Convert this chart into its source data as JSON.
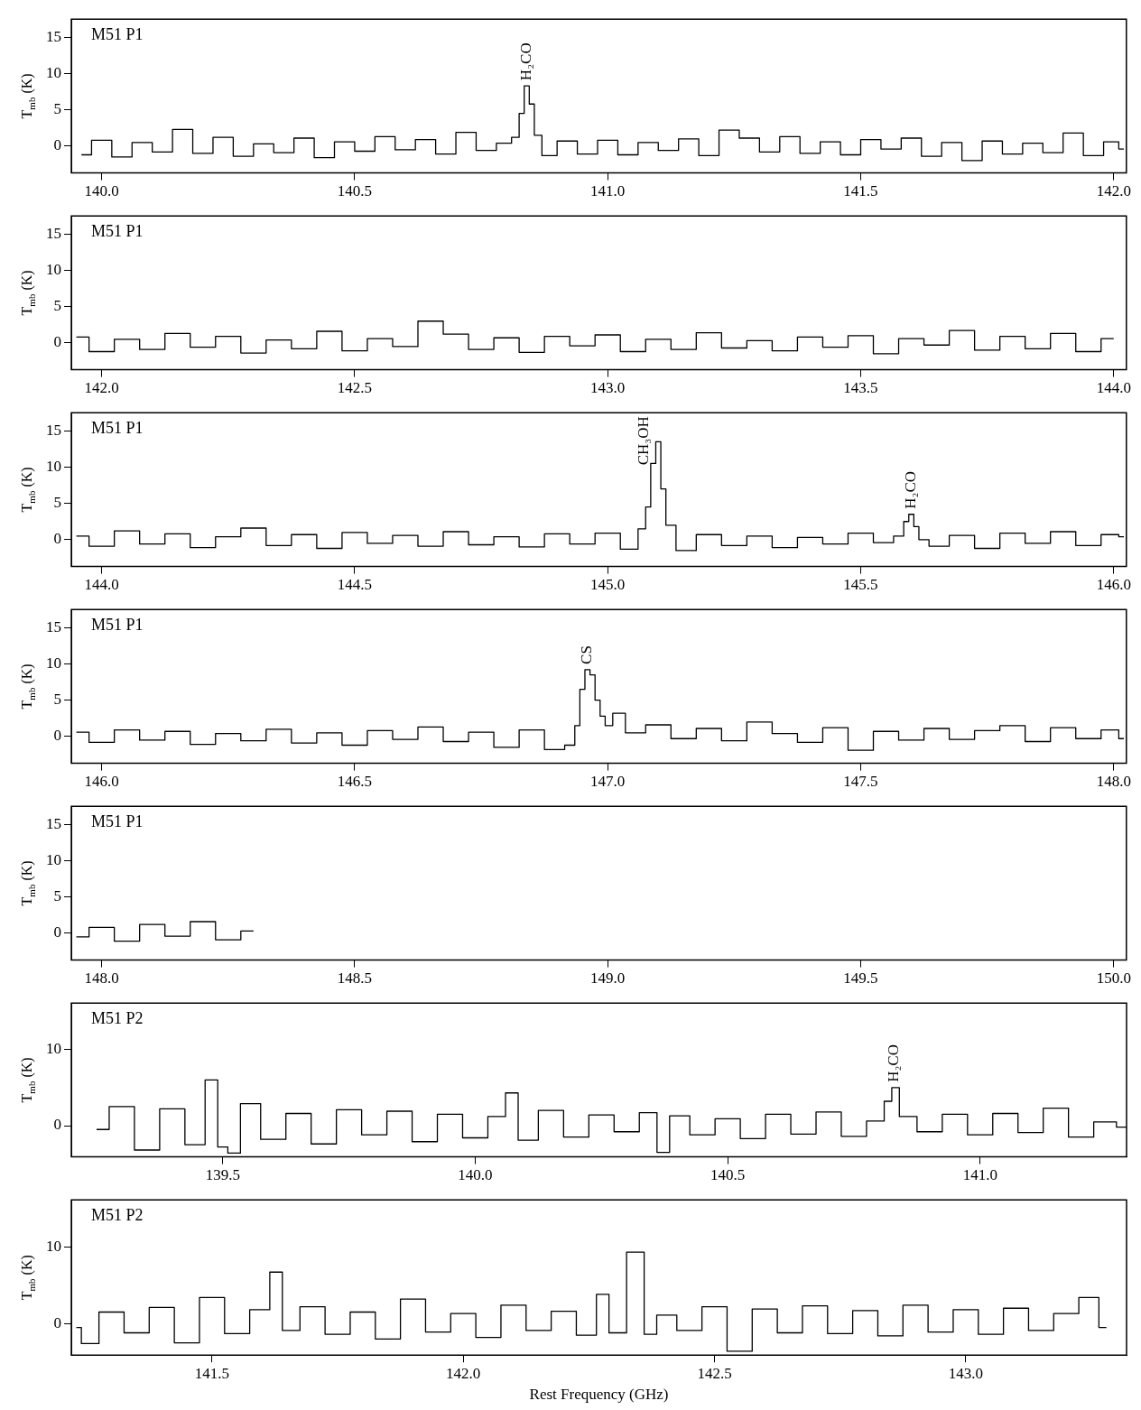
{
  "chart_data": [
    {
      "type": "step",
      "title": "M51 P1",
      "ylabel": "T$_{mb}$ (K)",
      "color": "#000000",
      "xlim": [
        139.94,
        142.025
      ],
      "ylim": [
        -3.7,
        17.5
      ],
      "yticks": [
        0,
        5,
        10,
        15
      ],
      "xticks": [
        {
          "value": 140,
          "label": "140.0"
        },
        {
          "value": 140.5,
          "label": "140.5"
        },
        {
          "value": 141,
          "label": "141.0"
        },
        {
          "value": 141.5,
          "label": "141.5"
        },
        {
          "value": 142,
          "label": "142.0"
        }
      ],
      "x": [
        139.96,
        140.0,
        140.04,
        140.08,
        140.12,
        140.16,
        140.2,
        140.24,
        140.28,
        140.32,
        140.36,
        140.4,
        140.44,
        140.48,
        140.52,
        140.56,
        140.6,
        140.64,
        140.68,
        140.72,
        140.76,
        140.8,
        140.82,
        140.83,
        140.84,
        140.85,
        140.86,
        140.88,
        140.92,
        140.96,
        141.0,
        141.04,
        141.08,
        141.12,
        141.16,
        141.2,
        141.24,
        141.28,
        141.32,
        141.36,
        141.4,
        141.44,
        141.48,
        141.52,
        141.56,
        141.6,
        141.64,
        141.68,
        141.72,
        141.76,
        141.8,
        141.84,
        141.88,
        141.92,
        141.96,
        142.0,
        142.02
      ],
      "values": [
        -1.2,
        0.8,
        -1.5,
        0.5,
        -0.8,
        2.3,
        -1,
        1.2,
        -1.4,
        0.3,
        -0.9,
        1.1,
        -1.6,
        0.6,
        -0.7,
        1.3,
        -0.5,
        0.9,
        -1.1,
        1.9,
        -0.6,
        0.4,
        1.2,
        4.5,
        8.3,
        5.8,
        1.5,
        -1.3,
        0.7,
        -1.1,
        0.8,
        -1.2,
        0.5,
        -0.6,
        1,
        -1.3,
        2.2,
        1.1,
        -0.8,
        1.3,
        -1,
        0.6,
        -1.2,
        0.9,
        -0.4,
        1.1,
        -1.4,
        0.5,
        -2,
        0.7,
        -1.1,
        0.4,
        -0.9,
        1.8,
        -1.3,
        0.6,
        -0.4
      ],
      "annotations": [
        {
          "text": "H₂CO",
          "x": 140.84,
          "y": 8.3
        }
      ]
    },
    {
      "type": "step",
      "title": "M51 P1",
      "ylabel": "T$_{mb}$ (K)",
      "color": "#000000",
      "xlim": [
        141.94,
        144.025
      ],
      "ylim": [
        -3.7,
        17.5
      ],
      "yticks": [
        0,
        5,
        10,
        15
      ],
      "xticks": [
        {
          "value": 142,
          "label": "142.0"
        },
        {
          "value": 142.5,
          "label": "142.5"
        },
        {
          "value": 143,
          "label": "143.0"
        },
        {
          "value": 143.5,
          "label": "143.5"
        },
        {
          "value": 144,
          "label": "144.0"
        }
      ],
      "x": [
        141.95,
        142.0,
        142.05,
        142.1,
        142.15,
        142.2,
        142.25,
        142.3,
        142.35,
        142.4,
        142.45,
        142.5,
        142.55,
        142.6,
        142.65,
        142.7,
        142.75,
        142.8,
        142.85,
        142.9,
        142.95,
        143.0,
        143.05,
        143.1,
        143.15,
        143.2,
        143.25,
        143.3,
        143.35,
        143.4,
        143.45,
        143.5,
        143.55,
        143.6,
        143.65,
        143.7,
        143.75,
        143.8,
        143.85,
        143.9,
        143.95,
        144.0
      ],
      "values": [
        0.8,
        -1.2,
        0.5,
        -0.9,
        1.3,
        -0.6,
        0.9,
        -1.4,
        0.4,
        -0.8,
        1.6,
        -1.1,
        0.6,
        -0.5,
        3,
        1.2,
        -0.9,
        0.7,
        -1.3,
        0.9,
        -0.4,
        1.1,
        -1.2,
        0.5,
        -0.9,
        1.4,
        -0.7,
        0.3,
        -1.1,
        0.8,
        -0.6,
        1,
        -1.5,
        0.6,
        -0.3,
        1.7,
        -1,
        0.9,
        -0.8,
        1.3,
        -1.2,
        0.6
      ]
    },
    {
      "type": "step",
      "title": "M51 P1",
      "ylabel": "T$_{mb}$ (K)",
      "color": "#000000",
      "xlim": [
        143.94,
        146.025
      ],
      "ylim": [
        -3.7,
        17.5
      ],
      "yticks": [
        0,
        5,
        10,
        15
      ],
      "xticks": [
        {
          "value": 144,
          "label": "144.0"
        },
        {
          "value": 144.5,
          "label": "144.5"
        },
        {
          "value": 145,
          "label": "145.0"
        },
        {
          "value": 145.5,
          "label": "145.5"
        },
        {
          "value": 146,
          "label": "146.0"
        }
      ],
      "x": [
        143.95,
        144.0,
        144.05,
        144.1,
        144.15,
        144.2,
        144.25,
        144.3,
        144.35,
        144.4,
        144.45,
        144.5,
        144.55,
        144.6,
        144.65,
        144.7,
        144.75,
        144.8,
        144.85,
        144.9,
        144.95,
        145.0,
        145.05,
        145.07,
        145.08,
        145.09,
        145.1,
        145.11,
        145.12,
        145.15,
        145.2,
        145.25,
        145.3,
        145.35,
        145.4,
        145.45,
        145.5,
        145.55,
        145.58,
        145.59,
        145.6,
        145.61,
        145.62,
        145.65,
        145.7,
        145.75,
        145.8,
        145.85,
        145.9,
        145.95,
        146.0,
        146.02
      ],
      "values": [
        0.5,
        -0.9,
        1.2,
        -0.6,
        0.8,
        -1.1,
        0.4,
        1.6,
        -0.8,
        0.7,
        -1.2,
        1,
        -0.5,
        0.6,
        -0.9,
        1.1,
        -0.7,
        0.4,
        -1,
        0.8,
        -0.6,
        0.9,
        -1.3,
        1.5,
        4.5,
        10.5,
        13.5,
        7,
        2,
        -1.5,
        0.7,
        -0.8,
        0.5,
        -1.1,
        0.3,
        -0.6,
        0.9,
        -0.4,
        0.5,
        2.5,
        3.5,
        1.8,
        0,
        -0.9,
        0.6,
        -1.2,
        0.9,
        -0.5,
        1.1,
        -0.8,
        0.7,
        0.4
      ],
      "annotations": [
        {
          "text": "CH₃OH",
          "x": 145.1,
          "y": 13.5
        },
        {
          "text": "H₂CO",
          "x": 145.6,
          "y": 3.5
        }
      ]
    },
    {
      "type": "step",
      "title": "M51 P1",
      "ylabel": "T$_{mb}$ (K)",
      "color": "#000000",
      "xlim": [
        145.94,
        148.025
      ],
      "ylim": [
        -3.7,
        17.5
      ],
      "yticks": [
        0,
        5,
        10,
        15
      ],
      "xticks": [
        {
          "value": 146,
          "label": "146.0"
        },
        {
          "value": 146.5,
          "label": "146.5"
        },
        {
          "value": 147,
          "label": "147.0"
        },
        {
          "value": 147.5,
          "label": "147.5"
        },
        {
          "value": 148,
          "label": "148.0"
        }
      ],
      "x": [
        145.95,
        146.0,
        146.05,
        146.1,
        146.15,
        146.2,
        146.25,
        146.3,
        146.35,
        146.4,
        146.45,
        146.5,
        146.55,
        146.6,
        146.65,
        146.7,
        146.75,
        146.8,
        146.85,
        146.9,
        146.93,
        146.94,
        146.95,
        146.96,
        146.97,
        146.98,
        146.99,
        147.0,
        147.02,
        147.05,
        147.1,
        147.15,
        147.2,
        147.25,
        147.3,
        147.35,
        147.4,
        147.45,
        147.5,
        147.55,
        147.6,
        147.65,
        147.7,
        147.75,
        147.8,
        147.85,
        147.9,
        147.95,
        148.0,
        148.02
      ],
      "values": [
        0.6,
        -0.8,
        0.9,
        -0.5,
        0.7,
        -1.1,
        0.4,
        -0.6,
        1,
        -0.9,
        0.5,
        -1.2,
        0.8,
        -0.4,
        1.3,
        -0.7,
        0.6,
        -1.5,
        0.9,
        -1.8,
        -1.2,
        1.5,
        6.5,
        9.2,
        8.5,
        5,
        2.8,
        1.5,
        3.2,
        0.5,
        1.6,
        -0.3,
        1.1,
        -0.6,
        2,
        0.4,
        -0.8,
        1.2,
        -1.9,
        0.7,
        -0.5,
        1.1,
        -0.4,
        0.8,
        1.5,
        -0.7,
        1.2,
        -0.3,
        0.9,
        -0.3
      ],
      "annotations": [
        {
          "text": "CS",
          "x": 146.96,
          "y": 9.2
        }
      ]
    },
    {
      "type": "step",
      "title": "M51 P1",
      "ylabel": "T$_{mb}$ (K)",
      "color": "#000000",
      "xlim": [
        147.94,
        150.025
      ],
      "ylim": [
        -3.7,
        17.5
      ],
      "yticks": [
        0,
        5,
        10,
        15
      ],
      "xticks": [
        {
          "value": 148,
          "label": "148.0"
        },
        {
          "value": 148.5,
          "label": "148.5"
        },
        {
          "value": 149,
          "label": "149.0"
        },
        {
          "value": 149.5,
          "label": "149.5"
        },
        {
          "value": 150,
          "label": "150.0"
        }
      ],
      "x": [
        147.95,
        148.0,
        148.05,
        148.1,
        148.15,
        148.2,
        148.25,
        148.3
      ],
      "values": [
        -0.5,
        0.8,
        -1.1,
        1.2,
        -0.4,
        1.6,
        -0.9,
        0.3
      ]
    },
    {
      "type": "step",
      "title": "M51 P2",
      "ylabel": "T$_{mb}$ (K)",
      "color": "#000000",
      "xlim": [
        139.2,
        141.29
      ],
      "ylim": [
        -4.1,
        16.1
      ],
      "yticks": [
        0,
        10
      ],
      "xticks": [
        {
          "value": 139.5,
          "label": "139.5"
        },
        {
          "value": 140,
          "label": "140.0"
        },
        {
          "value": 140.5,
          "label": "140.5"
        },
        {
          "value": 141,
          "label": "141.0"
        }
      ],
      "x": [
        139.25,
        139.3,
        139.35,
        139.4,
        139.45,
        139.48,
        139.5,
        139.52,
        139.55,
        139.6,
        139.65,
        139.7,
        139.75,
        139.8,
        139.85,
        139.9,
        139.95,
        140.0,
        140.05,
        140.07,
        140.1,
        140.15,
        140.2,
        140.25,
        140.3,
        140.35,
        140.37,
        140.4,
        140.45,
        140.5,
        140.55,
        140.6,
        140.65,
        140.7,
        140.75,
        140.8,
        140.82,
        140.83,
        140.85,
        140.9,
        140.95,
        141.0,
        141.05,
        141.1,
        141.15,
        141.2,
        141.25,
        141.29
      ],
      "values": [
        -0.5,
        2.5,
        -3.2,
        2.2,
        -2.5,
        6,
        -2.8,
        -3.6,
        2.9,
        -1.8,
        1.6,
        -2.4,
        2.1,
        -1.2,
        1.9,
        -2.1,
        1.5,
        -1.6,
        1.2,
        4.3,
        -1.9,
        2,
        -1.5,
        1.4,
        -0.8,
        1.7,
        -3.5,
        1.3,
        -1.2,
        0.9,
        -1.7,
        1.5,
        -1.1,
        1.8,
        -1.4,
        0.6,
        3.2,
        5,
        1.2,
        -0.8,
        1.5,
        -1.2,
        1.6,
        -0.9,
        2.3,
        -1.5,
        0.5,
        -0.2
      ],
      "annotations": [
        {
          "text": "H₂CO",
          "x": 140.83,
          "y": 5
        }
      ]
    },
    {
      "type": "step",
      "title": "M51 P2",
      "ylabel": "T$_{mb}$ (K)",
      "xlabel": "Rest Frequency (GHz)",
      "color": "#000000",
      "xlim": [
        141.22,
        143.32
      ],
      "ylim": [
        -4.1,
        16.1
      ],
      "yticks": [
        0,
        10
      ],
      "xticks": [
        {
          "value": 141.5,
          "label": "141.5"
        },
        {
          "value": 142,
          "label": "142.0"
        },
        {
          "value": 142.5,
          "label": "142.5"
        },
        {
          "value": 143,
          "label": "143.0"
        }
      ],
      "x": [
        141.23,
        141.25,
        141.3,
        141.35,
        141.4,
        141.45,
        141.5,
        141.55,
        141.6,
        141.63,
        141.65,
        141.7,
        141.75,
        141.8,
        141.85,
        141.9,
        141.95,
        142.0,
        142.05,
        142.1,
        142.15,
        142.2,
        142.25,
        142.28,
        142.3,
        142.35,
        142.37,
        142.4,
        142.45,
        142.5,
        142.55,
        142.6,
        142.65,
        142.7,
        142.75,
        142.8,
        142.85,
        142.9,
        142.95,
        143.0,
        143.05,
        143.1,
        143.15,
        143.2,
        143.25,
        143.28
      ],
      "values": [
        -0.5,
        -2.6,
        1.5,
        -1.2,
        2.1,
        -2.5,
        3.4,
        -1.3,
        1.8,
        6.7,
        -0.9,
        2.2,
        -1.4,
        1.5,
        -2,
        3.2,
        -1.1,
        1.3,
        -1.8,
        2.4,
        -0.9,
        1.6,
        -1.5,
        3.8,
        -1.2,
        9.3,
        -1.4,
        1.1,
        -0.9,
        2.2,
        -3.6,
        1.9,
        -1.2,
        2.3,
        -1.3,
        1.7,
        -1.6,
        2.4,
        -1.1,
        1.8,
        -1.4,
        2,
        -0.9,
        1.3,
        3.4,
        -0.5
      ]
    }
  ]
}
